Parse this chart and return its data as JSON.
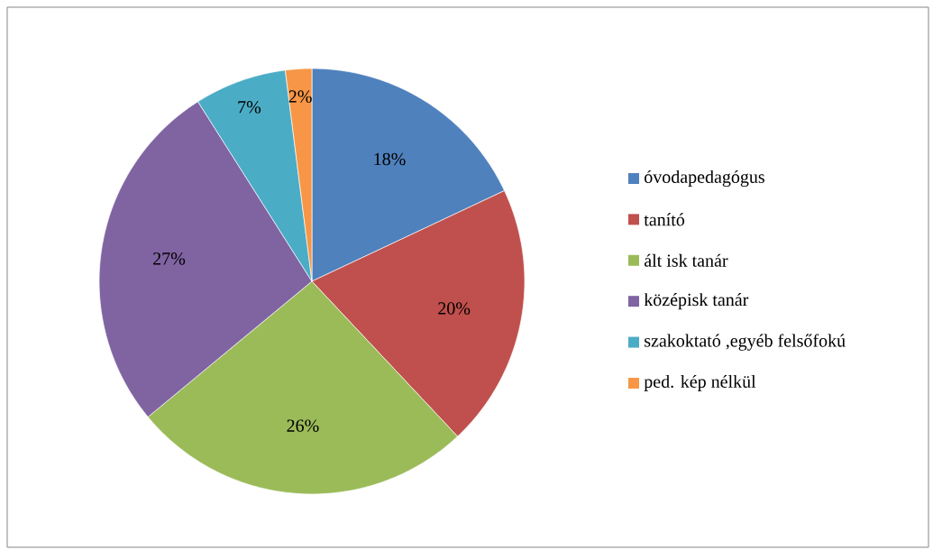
{
  "chart_data": {
    "type": "pie",
    "categories": [
      "óvodapedagógus",
      "tanító",
      "ált isk tanár",
      "középisk tanár",
      "szakoktató ,egyéb felsőfokú",
      "ped. kép nélkül"
    ],
    "values": [
      18,
      20,
      26,
      27,
      7,
      2
    ],
    "colors": [
      "#4f81bd",
      "#c0504d",
      "#9bbb59",
      "#8064a2",
      "#4bacc6",
      "#f79646"
    ],
    "value_labels": [
      "18%",
      "20%",
      "26%",
      "27%",
      "7%",
      "2%"
    ],
    "legend": "right"
  }
}
